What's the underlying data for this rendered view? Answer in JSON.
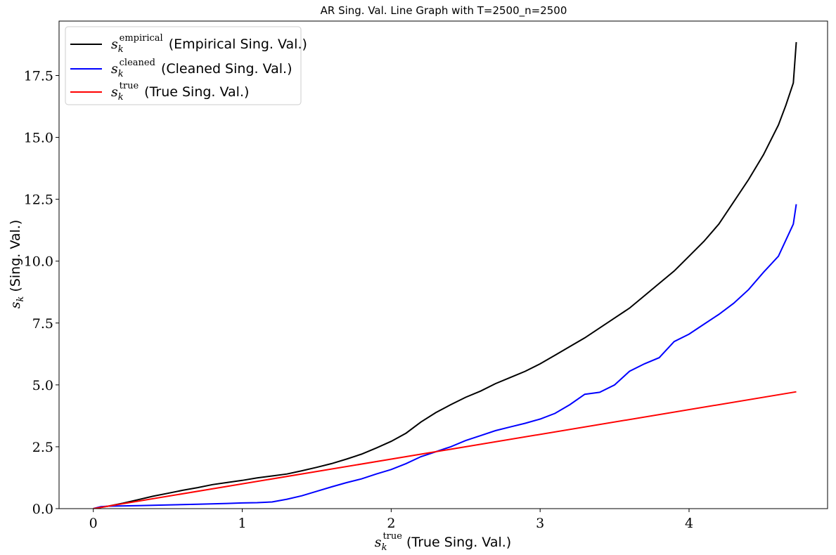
{
  "chart_data": {
    "type": "line",
    "title": "AR Sing. Val. Line Graph with T=2500_n=2500",
    "xlabel": {
      "symbol": "s",
      "sub": "k",
      "sup": "true",
      "text": "(True Sing. Val.)"
    },
    "ylabel": {
      "symbol": "s",
      "sub": "k",
      "text": "(Sing. Val.)"
    },
    "xlim": [
      -0.23,
      4.93
    ],
    "ylim": [
      0,
      19.7
    ],
    "xticks": [
      0,
      1,
      2,
      3,
      4
    ],
    "xtick_labels": [
      "0",
      "1",
      "2",
      "3",
      "4"
    ],
    "yticks": [
      0,
      2.5,
      5,
      7.5,
      10,
      12.5,
      15,
      17.5
    ],
    "ytick_labels": [
      "0.0",
      "2.5",
      "5.0",
      "7.5",
      "10.0",
      "12.5",
      "15.0",
      "17.5"
    ],
    "grid": false,
    "legend_position": "top-left",
    "series": [
      {
        "name": "(Empirical Sing. Val.)",
        "legend_symbol": "s",
        "legend_sub": "k",
        "legend_sup": "empirical",
        "color": "#000000",
        "x": [
          0,
          0.1,
          0.2,
          0.3,
          0.4,
          0.5,
          0.6,
          0.7,
          0.8,
          0.9,
          1.0,
          1.1,
          1.2,
          1.3,
          1.4,
          1.5,
          1.6,
          1.7,
          1.8,
          1.9,
          2.0,
          2.1,
          2.2,
          2.3,
          2.4,
          2.5,
          2.6,
          2.7,
          2.8,
          2.9,
          3.0,
          3.1,
          3.2,
          3.3,
          3.4,
          3.5,
          3.6,
          3.7,
          3.8,
          3.9,
          4.0,
          4.1,
          4.2,
          4.3,
          4.4,
          4.5,
          4.6,
          4.65,
          4.7,
          4.72
        ],
        "y": [
          0,
          0.1,
          0.22,
          0.36,
          0.5,
          0.62,
          0.74,
          0.85,
          0.97,
          1.06,
          1.14,
          1.24,
          1.32,
          1.4,
          1.53,
          1.67,
          1.82,
          2.0,
          2.2,
          2.45,
          2.72,
          3.05,
          3.5,
          3.88,
          4.2,
          4.5,
          4.75,
          5.05,
          5.3,
          5.55,
          5.85,
          6.2,
          6.55,
          6.9,
          7.3,
          7.7,
          8.1,
          8.6,
          9.1,
          9.6,
          10.2,
          10.8,
          11.5,
          12.4,
          13.3,
          14.3,
          15.5,
          16.3,
          17.2,
          18.85
        ]
      },
      {
        "name": "(Cleaned Sing. Val.)",
        "legend_symbol": "s",
        "legend_sub": "k",
        "legend_sup": "cleaned",
        "color": "#0000ff",
        "x": [
          0,
          0.05,
          0.1,
          0.3,
          0.5,
          0.7,
          0.9,
          1.0,
          1.1,
          1.2,
          1.3,
          1.4,
          1.5,
          1.6,
          1.7,
          1.8,
          1.9,
          2.0,
          2.1,
          2.2,
          2.3,
          2.4,
          2.5,
          2.6,
          2.7,
          2.8,
          2.9,
          3.0,
          3.1,
          3.2,
          3.3,
          3.4,
          3.5,
          3.6,
          3.7,
          3.8,
          3.9,
          4.0,
          4.1,
          4.2,
          4.3,
          4.4,
          4.5,
          4.6,
          4.7,
          4.72
        ],
        "y": [
          0,
          0.08,
          0.1,
          0.12,
          0.15,
          0.18,
          0.21,
          0.23,
          0.24,
          0.27,
          0.38,
          0.52,
          0.7,
          0.88,
          1.05,
          1.2,
          1.4,
          1.58,
          1.82,
          2.1,
          2.3,
          2.5,
          2.75,
          2.95,
          3.15,
          3.3,
          3.45,
          3.62,
          3.85,
          4.2,
          4.62,
          4.7,
          5.0,
          5.55,
          5.85,
          6.1,
          6.75,
          7.05,
          7.45,
          7.85,
          8.3,
          8.85,
          9.55,
          10.2,
          11.5,
          12.3
        ]
      },
      {
        "name": "(True Sing. Val.)",
        "legend_symbol": "s",
        "legend_sub": "k",
        "legend_sup": "true",
        "color": "#ff0000",
        "x": [
          0,
          4.72
        ],
        "y": [
          0,
          4.72
        ]
      }
    ]
  }
}
